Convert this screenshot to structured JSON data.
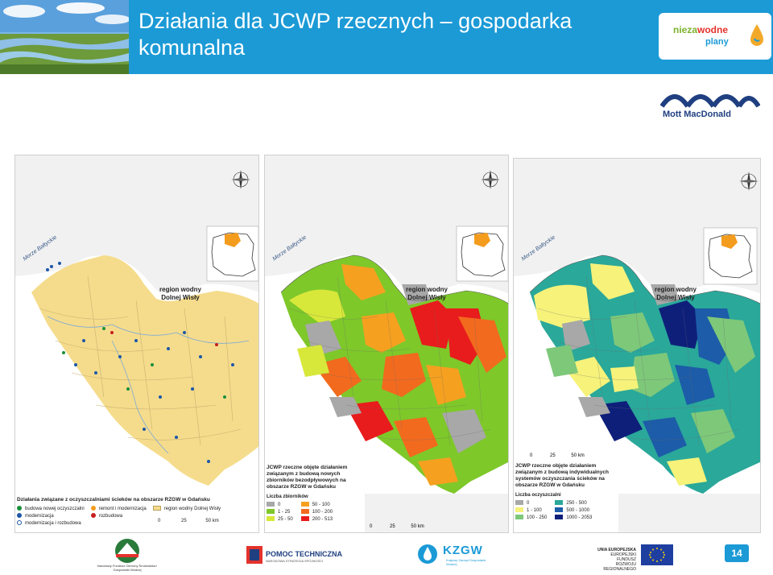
{
  "slide": {
    "title_line1": "Działania dla JCWP rzecznych – gospodarka",
    "title_line2": "komunalna",
    "page_number": "14"
  },
  "brand": {
    "name_part1": "nieza",
    "name_part2": "wodne",
    "name_part3": "plany",
    "partner": "Mott MacDonald"
  },
  "map_common": {
    "sea_label": "Morze Bałtyckie",
    "region_line1": "region wodny",
    "region_line2": "Dolnej Wisły",
    "compass_n": "N",
    "compass_s": "S",
    "compass_e": "E",
    "compass_w": "W"
  },
  "map1": {
    "legend_title": "Działania związane z oczyszczalniami ścieków na obszarze RZGW w Gdańsku",
    "items": [
      "budowa nowej oczyszczalni",
      "modernizacja",
      "modernizacja i rozbudowa",
      "remont i modernizacja",
      "rozbudowa",
      "region wodny Dolnej Wisły"
    ],
    "scale": [
      "0",
      "25",
      "50 km"
    ],
    "colors": {
      "fill": "#f5dc8c",
      "outside": "#f0f0f0",
      "dot_build": "#1a8f3a",
      "dot_mod": "#1c56a8",
      "dot_red": "#c81e1e"
    }
  },
  "map2": {
    "legend_title": "JCWP rzeczne objęte działaniem związanym z budową nowych zbiorników bezodpływowych na obszarze RZGW w Gdańsku",
    "subtitle": "Liczba zbiorników",
    "classes": [
      "0",
      "1 - 25",
      "25 - 50",
      "50 - 100",
      "100 - 200",
      "200 - 513"
    ],
    "colors": [
      "#a8a8a8",
      "#7ec82a",
      "#d8e83a",
      "#f6a020",
      "#f26a1e",
      "#e81c1c"
    ],
    "scale": [
      "0",
      "25",
      "50 km"
    ]
  },
  "map3": {
    "legend_title": "JCWP rzeczne objęte działaniem związanym z budową indywidualnych systemów oczyszczania ścieków na obszarze RZGW w Gdańsku",
    "subtitle": "Liczba oczyszczalni",
    "classes": [
      "0",
      "1 - 100",
      "100 - 250",
      "250 - 500",
      "500 - 1000",
      "1000 - 2053"
    ],
    "colors": [
      "#a8a8a8",
      "#f6f27a",
      "#7ec87a",
      "#2aa89a",
      "#1c5ca8",
      "#0e1f7a"
    ],
    "scale": [
      "0",
      "25",
      "50 km"
    ]
  },
  "footer": {
    "logo1_text": "Narodowy Fundusz Ochrony Środowiska i Gospodarki Wodnej",
    "logo2_title": "POMOC TECHNICZNA",
    "logo2_sub": "NARODOWA STRATEGIA SPÓJNOŚCI",
    "logo3_title": "KZGW",
    "logo3_sub": "Krajowy Zarząd Gospodarki Wodnej",
    "logo4_line1": "UNIA EUROPEJSKA",
    "logo4_line2": "EUROPEJSKI FUNDUSZ",
    "logo4_line3": "ROZWOJU REGIONALNEGO"
  }
}
